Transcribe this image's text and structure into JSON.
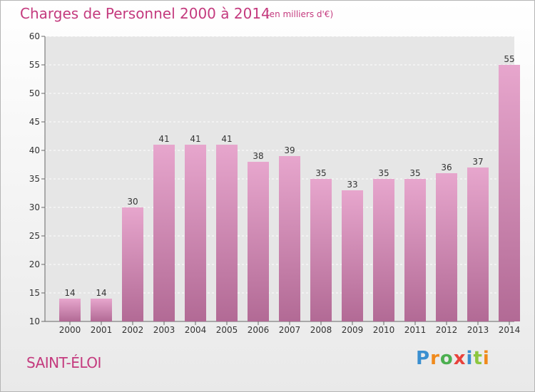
{
  "title": "Charges de Personnel 2000 à 2014",
  "subtitle": "(en milliers d'€)",
  "city": "SAINT-ÉLOI",
  "logo": {
    "text": "Proxiti",
    "letters": [
      "P",
      "r",
      "o",
      "x",
      "i",
      "t",
      "i"
    ]
  },
  "colors": {
    "accent": "#c43a7e",
    "bar_top": "#e7a6cd",
    "bar_bottom": "#b26a95"
  },
  "chart_data": {
    "type": "bar",
    "categories": [
      "2000",
      "2001",
      "2002",
      "2003",
      "2004",
      "2005",
      "2006",
      "2007",
      "2008",
      "2009",
      "2010",
      "2011",
      "2012",
      "2013",
      "2014"
    ],
    "values": [
      14,
      14,
      30,
      41,
      41,
      41,
      38,
      39,
      35,
      33,
      35,
      35,
      36,
      37,
      55
    ],
    "yticks": [
      10,
      15,
      20,
      25,
      30,
      35,
      40,
      45,
      50,
      55,
      60
    ],
    "ylim": [
      10,
      60
    ],
    "grid": true,
    "data_labels": true
  }
}
